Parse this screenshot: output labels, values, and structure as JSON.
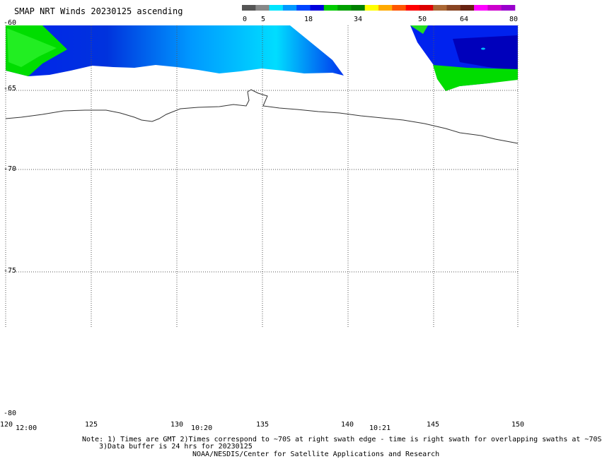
{
  "title": "SMAP NRT Winds 20230125 ascending",
  "colorbar": {
    "labels": [
      "0",
      "5",
      "18",
      "34",
      "50",
      "64",
      "80"
    ],
    "colors": [
      "#555555",
      "#888888",
      "#00e5ff",
      "#0099ff",
      "#0044ff",
      "#0000dd",
      "#00cc00",
      "#00a000",
      "#008000",
      "#ffff00",
      "#ffaa00",
      "#ff5500",
      "#ff0000",
      "#dd0000",
      "#aa6633",
      "#884422",
      "#662211",
      "#ff00ff",
      "#cc00cc",
      "#9900cc"
    ]
  },
  "axes": {
    "lat_labels": [
      "-60",
      "-65",
      "-70",
      "-75",
      "-80"
    ],
    "lon_labels": [
      "120",
      "125",
      "130",
      "135",
      "140",
      "145",
      "150"
    ],
    "time_labels": [
      "12:00",
      "10:20",
      "10:21"
    ]
  },
  "notes": {
    "line1": "Note: 1) Times are GMT 2)Times correspond to ~70S at right swath edge - time is right swath for overlapping swaths at ~70S",
    "line2": "3)Data buffer is 24 hrs for 20230125",
    "line3": "NOAA/NESDIS/Center for Satellite Applications and Research"
  }
}
